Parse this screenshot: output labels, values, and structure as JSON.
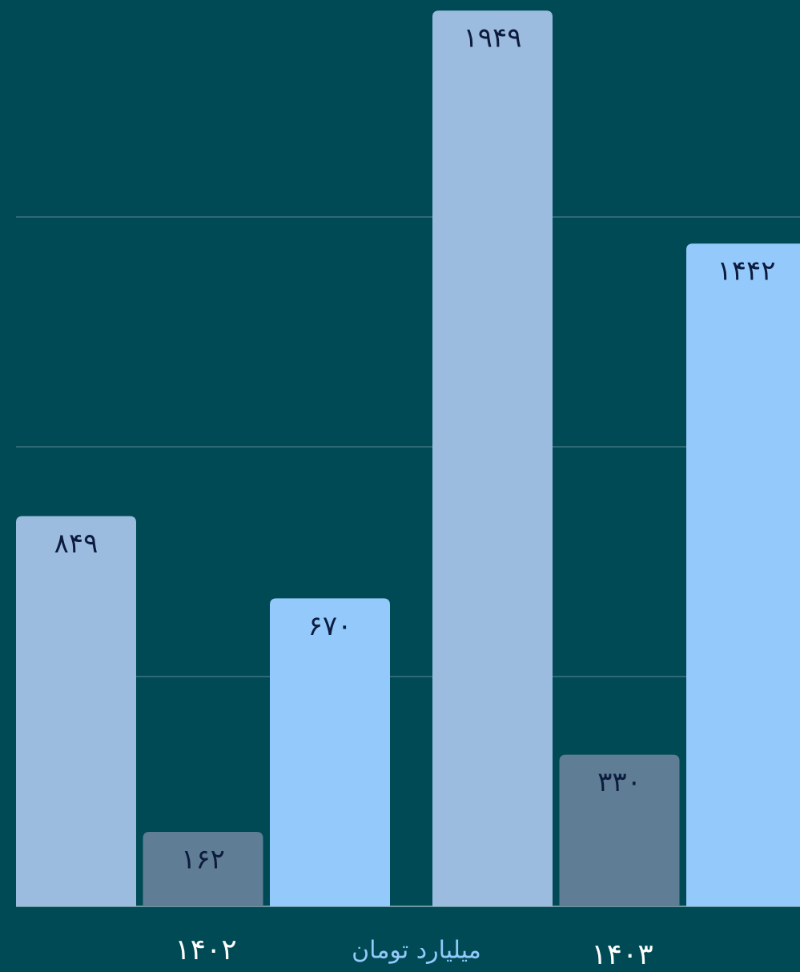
{
  "chart_data": {
    "type": "bar",
    "categories": [
      "۱۴۰۲",
      "۱۴۰۳"
    ],
    "ylabel": "میلیارد تومان",
    "series": [
      {
        "color": "#9bbcdf",
        "values": [
          849,
          1949
        ],
        "value_labels": [
          "۸۴۹",
          "۱۹۴۹"
        ]
      },
      {
        "color": "#5f7d95",
        "values": [
          162,
          330
        ],
        "value_labels": [
          "۱۶۲",
          "۳۳۰"
        ]
      },
      {
        "color": "#93c9fb",
        "values": [
          670,
          1442
        ],
        "value_labels": [
          "۶۷۰",
          "۱۴۴۲"
        ]
      }
    ],
    "ylim": [
      0,
      1972
    ],
    "yticks": [
      0,
      500,
      1000,
      1500
    ],
    "grid": true
  }
}
